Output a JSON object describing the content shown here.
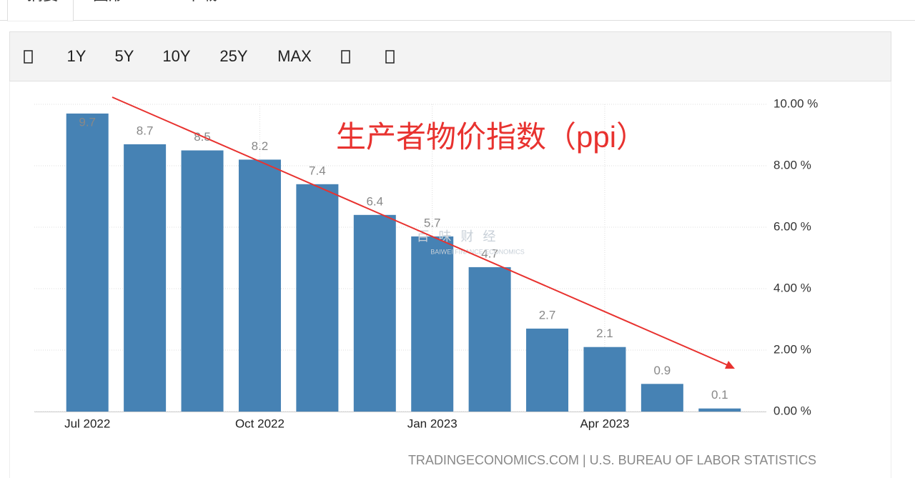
{
  "tabs": [
    "摘要",
    "图形",
    "下载"
  ],
  "toolbar": [
    "1Y",
    "5Y",
    "10Y",
    "25Y",
    "MAX"
  ],
  "chart_data": {
    "type": "bar",
    "annotation": "生产者物价指数（ppi）",
    "watermark": [
      "百 味 财 经",
      "BAIWEI FINANCE ECONOMICS"
    ],
    "source": "TRADINGECONOMICS.COM | U.S. BUREAU OF LABOR STATISTICS",
    "categories": [
      "Jul 2022",
      null,
      null,
      "Oct 2022",
      null,
      null,
      "Jan 2023",
      null,
      null,
      "Apr 2023",
      null,
      null
    ],
    "values": [
      9.7,
      8.7,
      8.5,
      8.2,
      7.4,
      6.4,
      5.7,
      4.7,
      2.7,
      2.1,
      0.9,
      0.1
    ],
    "color": "#4682b4",
    "ylim": [
      0,
      10
    ],
    "yticks": [
      {
        "value": 0,
        "label": "0.00 %"
      },
      {
        "value": 2,
        "label": "2.00 %"
      },
      {
        "value": 4,
        "label": "4.00 %"
      },
      {
        "value": 6,
        "label": "6.00 %"
      },
      {
        "value": 8,
        "label": "8.00 %"
      },
      {
        "value": 10,
        "label": "10.00 %"
      }
    ],
    "grid": true
  }
}
